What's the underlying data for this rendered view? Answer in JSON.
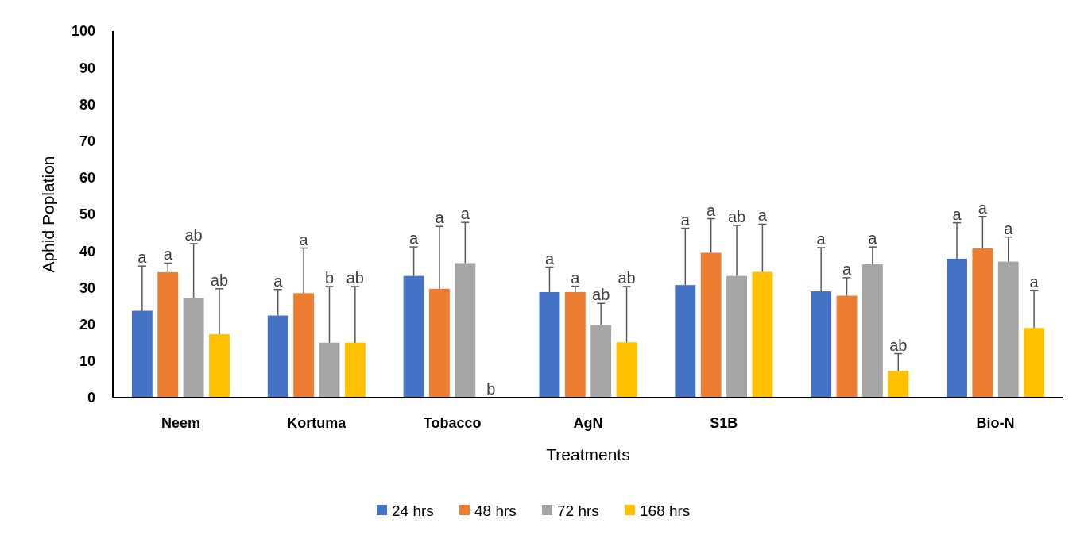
{
  "chart_data": {
    "type": "bar",
    "xlabel": "Treatments",
    "ylabel": "Aphid Poplation",
    "categories": [
      "Neem",
      "Kortuma",
      "Tobacco",
      "AgN",
      "S1B",
      null,
      "Bio-N"
    ],
    "series": [
      {
        "name": "24 hrs",
        "color": "#4472c4",
        "values": [
          23.7,
          22.4,
          33.2,
          28.8,
          30.7,
          29.0,
          37.9
        ],
        "errors": [
          12.2,
          7.1,
          7.9,
          6.8,
          15.5,
          11.9,
          9.8
        ]
      },
      {
        "name": "48 hrs",
        "color": "#ed7d31",
        "values": [
          34.2,
          28.5,
          29.7,
          28.8,
          39.5,
          27.8,
          40.7
        ],
        "errors": [
          2.5,
          12.3,
          17.0,
          1.6,
          9.3,
          4.9,
          8.7
        ]
      },
      {
        "name": "72 hrs",
        "color": "#a5a5a5",
        "values": [
          27.2,
          15.0,
          36.7,
          19.8,
          33.2,
          36.4,
          37.1
        ],
        "errors": [
          14.8,
          15.3,
          11.1,
          5.9,
          13.8,
          4.7,
          6.7
        ]
      },
      {
        "name": "168 hrs",
        "color": "#ffc000",
        "values": [
          17.3,
          15.0,
          0,
          15.1,
          34.3,
          7.3,
          19.0
        ],
        "errors": [
          12.4,
          15.3,
          null,
          15.2,
          13.0,
          4.7,
          10.3
        ]
      }
    ],
    "annotations": [
      "a",
      "a",
      "ab",
      "ab",
      "a",
      "a",
      "b",
      "ab",
      "a",
      "a",
      "a",
      "b",
      "a",
      "a",
      "ab",
      "ab",
      "a",
      "a",
      "ab",
      "a",
      "a",
      "a",
      "a",
      "ab",
      "a",
      "a",
      "a",
      "a"
    ],
    "ylim": [
      0,
      100
    ],
    "yticks": [
      0,
      10,
      20,
      30,
      40,
      50,
      60,
      70,
      80,
      90,
      100
    ],
    "grid": false,
    "legend": "bottom"
  }
}
